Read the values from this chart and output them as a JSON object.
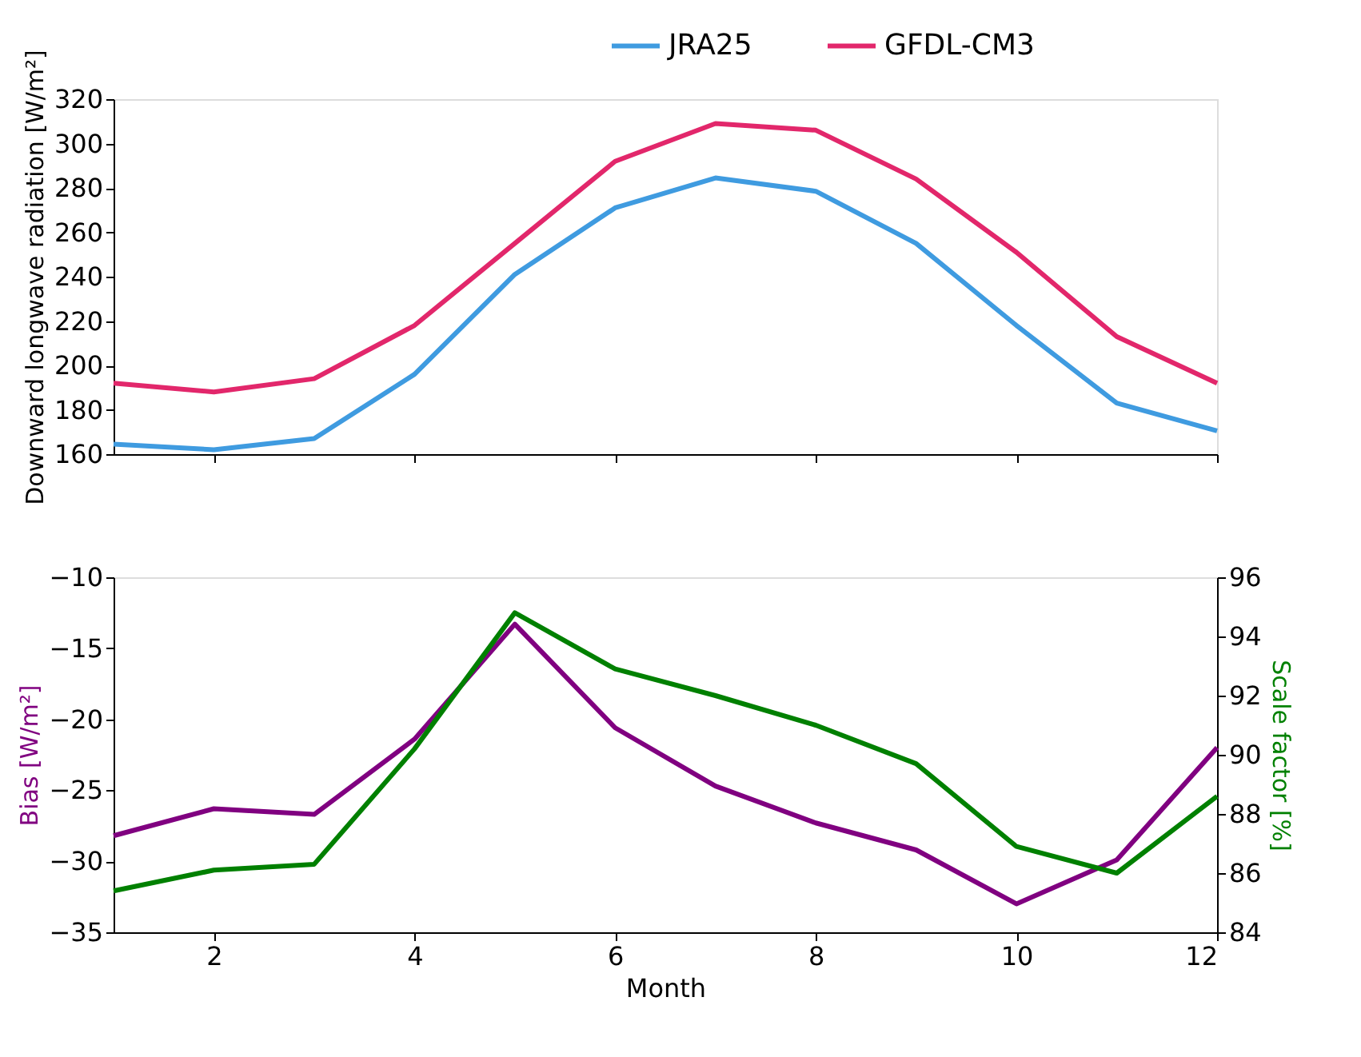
{
  "chart_data": [
    {
      "type": "line",
      "x": [
        1,
        2,
        3,
        4,
        5,
        6,
        7,
        8,
        9,
        10,
        11,
        12
      ],
      "xlim": [
        1,
        12
      ],
      "xticks": [
        2,
        4,
        6,
        8,
        10,
        12
      ],
      "ylim": [
        160,
        320
      ],
      "yticks": [
        160,
        180,
        200,
        220,
        240,
        260,
        280,
        300,
        320
      ],
      "ylabel": "Downward longwave radiation [W/m²]",
      "tick_labels": "y",
      "legend": "top right",
      "series": [
        {
          "name": "JRA25",
          "color": "#3f9be0",
          "values": [
            164.5,
            162,
            167,
            196,
            241,
            271,
            284.5,
            278.5,
            255,
            218,
            183,
            170.5
          ]
        },
        {
          "name": "GFDL-CM3",
          "color": "#e2276b",
          "values": [
            192,
            188,
            194,
            218,
            255,
            292,
            309,
            306,
            284,
            251,
            213,
            192
          ]
        }
      ]
    },
    {
      "type": "line",
      "x": [
        1,
        2,
        3,
        4,
        5,
        6,
        7,
        8,
        9,
        10,
        11,
        12
      ],
      "xlim": [
        1,
        12
      ],
      "xticks": [
        2,
        4,
        6,
        8,
        10,
        12
      ],
      "xlabel": "Month",
      "ylim": [
        -35,
        -10
      ],
      "yticks": [
        -35,
        -30,
        -25,
        -20,
        -15,
        -10
      ],
      "ylabel": "Bias [W/m²]",
      "y2lim": [
        84,
        96
      ],
      "y2ticks": [
        84,
        86,
        88,
        90,
        92,
        94,
        96
      ],
      "y2label": "Scale factor [%]",
      "series": [
        {
          "color": "#800080",
          "values": [
            -28.2,
            -26.3,
            -26.7,
            -21.4,
            -13.3,
            -20.6,
            -24.7,
            -27.3,
            -29.2,
            -33.0,
            -29.9,
            -22.0
          ]
        },
        {
          "color": "#008000",
          "axis": "y2",
          "values": [
            85.4,
            86.1,
            86.3,
            90.2,
            94.8,
            92.9,
            92.0,
            91.0,
            89.7,
            86.9,
            86.0,
            88.6
          ]
        }
      ]
    }
  ]
}
